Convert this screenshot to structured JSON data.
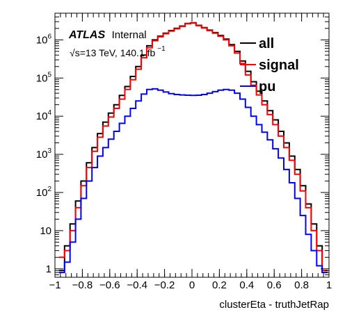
{
  "chart_data": {
    "type": "line",
    "subtype": "histogram-step",
    "title": "",
    "xlabel": "clusterEta - truthJetRap",
    "ylabel": "",
    "xlim": [
      -1,
      1
    ],
    "ylim": [
      0.6,
      5000000
    ],
    "ylog": true,
    "x_ticks": [
      "−1",
      "−0.8",
      "−0.6",
      "−0.4",
      "−0.2",
      "0",
      "0.2",
      "0.4",
      "0.6",
      "0.8",
      "1"
    ],
    "x_tick_values": [
      -1,
      -0.8,
      -0.6,
      -0.4,
      -0.2,
      0,
      0.2,
      0.4,
      0.6,
      0.8,
      1
    ],
    "y_ticks": [
      {
        "value": 1,
        "base": "1",
        "exp": ""
      },
      {
        "value": 10,
        "base": "10",
        "exp": ""
      },
      {
        "value": 100,
        "base": "10",
        "exp": "2"
      },
      {
        "value": 1000,
        "base": "10",
        "exp": "3"
      },
      {
        "value": 10000,
        "base": "10",
        "exp": "4"
      },
      {
        "value": 100000,
        "base": "10",
        "exp": "5"
      },
      {
        "value": 1000000,
        "base": "10",
        "exp": "6"
      }
    ],
    "annotations": {
      "atlas": "ATLAS",
      "internal": "Internal",
      "sqrt": "√",
      "energy": "s=13 TeV, 140.1 fb",
      "energy_exp": "−1"
    },
    "legend_position": "top-right",
    "series": [
      {
        "name": "all",
        "color": "#000000",
        "points": [
          [
            -0.95,
            0.9
          ],
          [
            -0.91,
            4
          ],
          [
            -0.87,
            15
          ],
          [
            -0.83,
            60
          ],
          [
            -0.79,
            200
          ],
          [
            -0.75,
            600
          ],
          [
            -0.71,
            1500
          ],
          [
            -0.67,
            3500
          ],
          [
            -0.63,
            7000
          ],
          [
            -0.59,
            12000
          ],
          [
            -0.55,
            20000
          ],
          [
            -0.51,
            35000
          ],
          [
            -0.47,
            60000
          ],
          [
            -0.43,
            110000
          ],
          [
            -0.39,
            200000
          ],
          [
            -0.35,
            400000
          ],
          [
            -0.31,
            700000
          ],
          [
            -0.27,
            1000000
          ],
          [
            -0.23,
            1250000
          ],
          [
            -0.19,
            1500000
          ],
          [
            -0.15,
            1750000
          ],
          [
            -0.11,
            2000000
          ],
          [
            -0.07,
            2300000
          ],
          [
            -0.03,
            2700000
          ],
          [
            0.01,
            2800000
          ],
          [
            0.05,
            2400000
          ],
          [
            0.09,
            2100000
          ],
          [
            0.13,
            1800000
          ],
          [
            0.17,
            1550000
          ],
          [
            0.21,
            1300000
          ],
          [
            0.25,
            1050000
          ],
          [
            0.29,
            750000
          ],
          [
            0.33,
            500000
          ],
          [
            0.37,
            280000
          ],
          [
            0.41,
            150000
          ],
          [
            0.45,
            80000
          ],
          [
            0.49,
            45000
          ],
          [
            0.53,
            25000
          ],
          [
            0.57,
            14000
          ],
          [
            0.61,
            8000
          ],
          [
            0.65,
            4000
          ],
          [
            0.69,
            2000
          ],
          [
            0.73,
            900
          ],
          [
            0.77,
            400
          ],
          [
            0.81,
            150
          ],
          [
            0.85,
            50
          ],
          [
            0.89,
            15
          ],
          [
            0.93,
            4
          ],
          [
            0.97,
            0.9
          ]
        ]
      },
      {
        "name": "signal",
        "color": "#ff0000",
        "points": [
          [
            -0.95,
            2
          ],
          [
            -0.91,
            3
          ],
          [
            -0.87,
            10
          ],
          [
            -0.83,
            40
          ],
          [
            -0.79,
            150
          ],
          [
            -0.75,
            450
          ],
          [
            -0.71,
            1200
          ],
          [
            -0.67,
            2800
          ],
          [
            -0.63,
            5500
          ],
          [
            -0.59,
            9500
          ],
          [
            -0.55,
            16000
          ],
          [
            -0.51,
            28000
          ],
          [
            -0.47,
            50000
          ],
          [
            -0.43,
            90000
          ],
          [
            -0.39,
            170000
          ],
          [
            -0.35,
            340000
          ],
          [
            -0.31,
            620000
          ],
          [
            -0.27,
            950000
          ],
          [
            -0.23,
            1200000
          ],
          [
            -0.19,
            1450000
          ],
          [
            -0.15,
            1700000
          ],
          [
            -0.11,
            1950000
          ],
          [
            -0.07,
            2250000
          ],
          [
            -0.03,
            2650000
          ],
          [
            0.01,
            2750000
          ],
          [
            0.05,
            2350000
          ],
          [
            0.09,
            2050000
          ],
          [
            0.13,
            1750000
          ],
          [
            0.17,
            1500000
          ],
          [
            0.21,
            1250000
          ],
          [
            0.25,
            1000000
          ],
          [
            0.29,
            700000
          ],
          [
            0.33,
            450000
          ],
          [
            0.37,
            240000
          ],
          [
            0.41,
            120000
          ],
          [
            0.45,
            65000
          ],
          [
            0.49,
            36000
          ],
          [
            0.53,
            20000
          ],
          [
            0.57,
            11000
          ],
          [
            0.61,
            6000
          ],
          [
            0.65,
            3000
          ],
          [
            0.69,
            1500
          ],
          [
            0.73,
            700
          ],
          [
            0.77,
            300
          ],
          [
            0.81,
            110
          ],
          [
            0.85,
            40
          ],
          [
            0.89,
            10
          ],
          [
            0.93,
            3
          ],
          [
            0.97,
            0.9
          ]
        ]
      },
      {
        "name": "pu",
        "color": "#0000ff",
        "points": [
          [
            -0.95,
            0.8
          ],
          [
            -0.91,
            1.5
          ],
          [
            -0.87,
            5
          ],
          [
            -0.83,
            20
          ],
          [
            -0.79,
            70
          ],
          [
            -0.75,
            200
          ],
          [
            -0.71,
            450
          ],
          [
            -0.67,
            900
          ],
          [
            -0.63,
            1500
          ],
          [
            -0.59,
            2500
          ],
          [
            -0.55,
            4000
          ],
          [
            -0.51,
            6500
          ],
          [
            -0.47,
            10000
          ],
          [
            -0.43,
            16000
          ],
          [
            -0.39,
            25000
          ],
          [
            -0.35,
            38000
          ],
          [
            -0.31,
            50000
          ],
          [
            -0.27,
            52000
          ],
          [
            -0.23,
            48000
          ],
          [
            -0.19,
            43000
          ],
          [
            -0.15,
            39000
          ],
          [
            -0.11,
            37000
          ],
          [
            -0.07,
            36000
          ],
          [
            -0.03,
            35500
          ],
          [
            0.01,
            35000
          ],
          [
            0.05,
            35500
          ],
          [
            0.09,
            37000
          ],
          [
            0.13,
            40000
          ],
          [
            0.17,
            44000
          ],
          [
            0.21,
            48000
          ],
          [
            0.25,
            50000
          ],
          [
            0.29,
            48000
          ],
          [
            0.33,
            40000
          ],
          [
            0.37,
            28000
          ],
          [
            0.41,
            17000
          ],
          [
            0.45,
            10000
          ],
          [
            0.49,
            6000
          ],
          [
            0.53,
            3800
          ],
          [
            0.57,
            2400
          ],
          [
            0.61,
            1400
          ],
          [
            0.65,
            800
          ],
          [
            0.69,
            400
          ],
          [
            0.73,
            180
          ],
          [
            0.77,
            70
          ],
          [
            0.81,
            25
          ],
          [
            0.85,
            8
          ],
          [
            0.89,
            3
          ],
          [
            0.93,
            1.2
          ],
          [
            0.97,
            0.8
          ]
        ]
      }
    ]
  }
}
